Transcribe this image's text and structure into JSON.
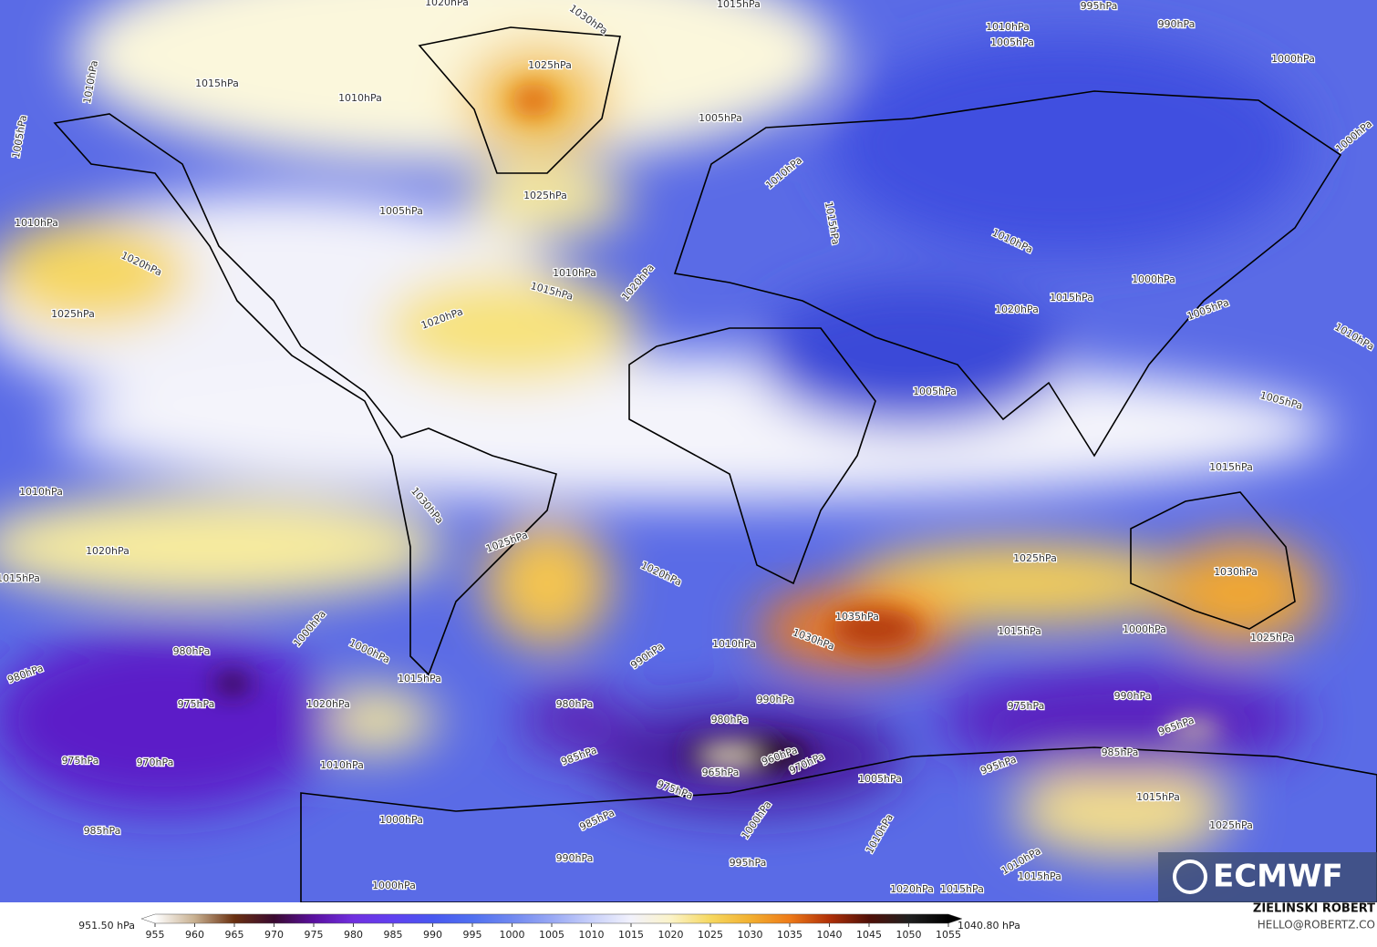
{
  "map": {
    "isobar_labels": [
      "1020hPa",
      "1030hPa",
      "1015hPa",
      "1010hPa",
      "1005hPa",
      "995hPa",
      "990hPa",
      "1000hPa",
      "1010hPa",
      "1015hPa",
      "1010hPa",
      "1025hPa",
      "1005hPa",
      "1005hPa",
      "1000hPa",
      "1005hPa",
      "1025hPa",
      "1010hPa",
      "1010hPa",
      "1020hPa",
      "1010hPa",
      "1015hPa",
      "1020hPa",
      "1015hPa",
      "1010hPa",
      "1000hPa",
      "1015hPa",
      "1020hPa",
      "1005hPa",
      "1010hPa",
      "1025hPa",
      "1020hPa",
      "1005hPa",
      "1005hPa",
      "1010hPa",
      "1015hPa",
      "1030hPa",
      "1025hPa",
      "1020hPa",
      "1020hPa",
      "1025hPa",
      "1030hPa",
      "1015hPa",
      "1035hPa",
      "1030hPa",
      "1015hPa",
      "1000hPa",
      "1025hPa",
      "1010hPa",
      "1000hPa",
      "1000hPa",
      "990hPa",
      "980hPa",
      "980hPa",
      "975hPa",
      "1020hPa",
      "980hPa",
      "990hPa",
      "990hPa",
      "975hPa",
      "980hPa",
      "965hPa",
      "985hPa",
      "960hPa",
      "965hPa",
      "970hPa",
      "975hPa",
      "970hPa",
      "1010hPa",
      "1005hPa",
      "985hPa",
      "995hPa",
      "975hPa",
      "985hPa",
      "1000hPa",
      "1000hPa",
      "1015hPa",
      "1010hPa",
      "985hPa",
      "1025hPa",
      "990hPa",
      "995hPa",
      "1000hPa",
      "1010hPa",
      "1015hPa",
      "1020hPa",
      "1015hPa",
      "1015hPa"
    ]
  },
  "colorbar": {
    "min_label": "951.50 hPa",
    "max_label": "1040.80 hPa",
    "ticks": [
      955,
      960,
      965,
      970,
      975,
      980,
      985,
      990,
      995,
      1000,
      1005,
      1010,
      1015,
      1020,
      1025,
      1030,
      1035,
      1040,
      1045,
      1050,
      1055
    ]
  },
  "credits": {
    "author": "ZIELINSKI ROBERT",
    "contact": "HELLO@ROBERTZ.CO",
    "logo": "ECMWF"
  }
}
